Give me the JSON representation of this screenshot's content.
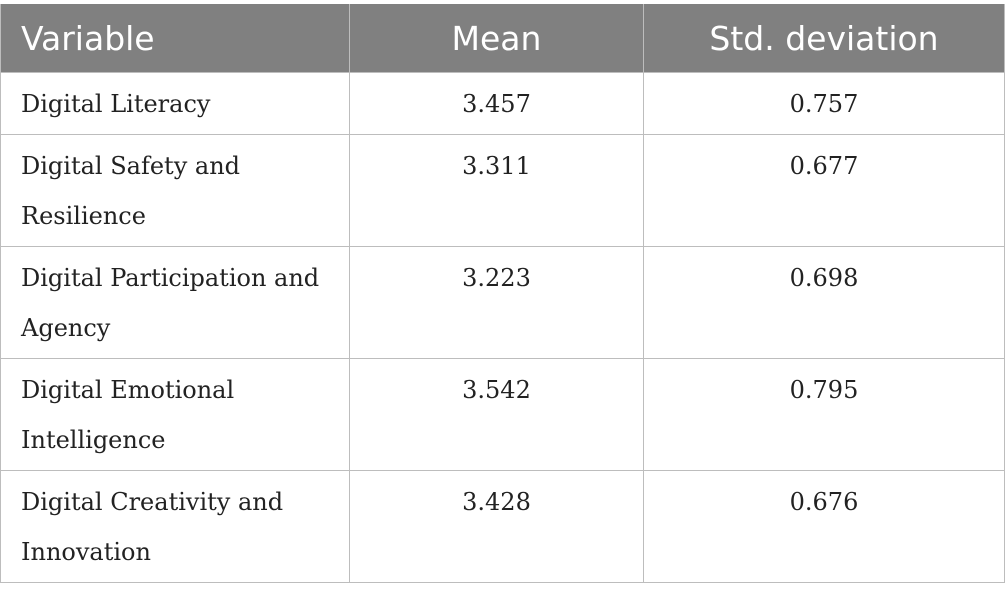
{
  "table": {
    "headers": [
      "Variable",
      "Mean",
      "Std. deviation"
    ],
    "rows": [
      {
        "variable": "Digital Literacy",
        "mean": "3.457",
        "sd": "0.757"
      },
      {
        "variable": "Digital Safety and Resilience",
        "mean": "3.311",
        "sd": "0.677"
      },
      {
        "variable": "Digital Participation and Agency",
        "mean": "3.223",
        "sd": "0.698"
      },
      {
        "variable": "Digital Emotional Intelligence",
        "mean": "3.542",
        "sd": "0.795"
      },
      {
        "variable": "Digital Creativity and Innovation",
        "mean": "3.428",
        "sd": "0.676"
      }
    ]
  },
  "colors": {
    "header_bg": "#808080",
    "header_text": "#ffffff",
    "grid_line": "#bdbdbd"
  }
}
